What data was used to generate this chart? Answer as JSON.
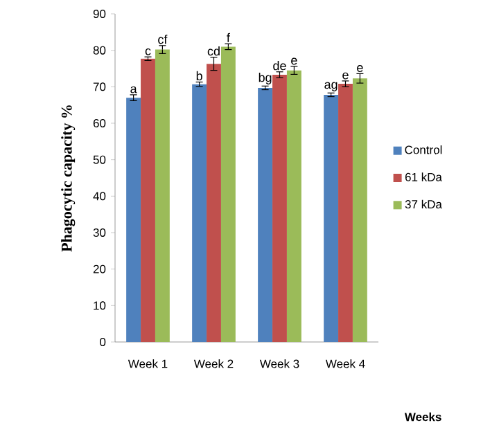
{
  "chart_data": {
    "type": "bar",
    "ylabel": "Phagocytic  capacity  %",
    "xlabel": "Weeks",
    "categories": [
      "Week 1",
      "Week 2",
      "Week 3",
      "Week 4"
    ],
    "series": [
      {
        "name": "Control",
        "color": "#4f81bd",
        "values": [
          67,
          70.7,
          69.7,
          67.8
        ],
        "errors": [
          0.8,
          0.6,
          0.5,
          0.5
        ],
        "value_labels": [
          "a",
          "b",
          "bg",
          "ag"
        ]
      },
      {
        "name": "61 kDa",
        "color": "#c0504d",
        "values": [
          77.7,
          76.3,
          73.3,
          70.8
        ],
        "errors": [
          0.5,
          1.8,
          0.8,
          0.8
        ],
        "value_labels": [
          "c",
          "cd",
          "de",
          "e"
        ]
      },
      {
        "name": "37 kDa",
        "color": "#9bbb59",
        "values": [
          80.2,
          81,
          74.5,
          72.3
        ],
        "errors": [
          1.1,
          0.8,
          1.1,
          1.3
        ],
        "value_labels": [
          "cf",
          "f",
          "e",
          "e"
        ]
      }
    ],
    "ylim": [
      0,
      90
    ],
    "yticks": [
      0,
      10,
      20,
      30,
      40,
      50,
      60,
      70,
      80,
      90
    ],
    "grid": false,
    "legend": "right"
  }
}
